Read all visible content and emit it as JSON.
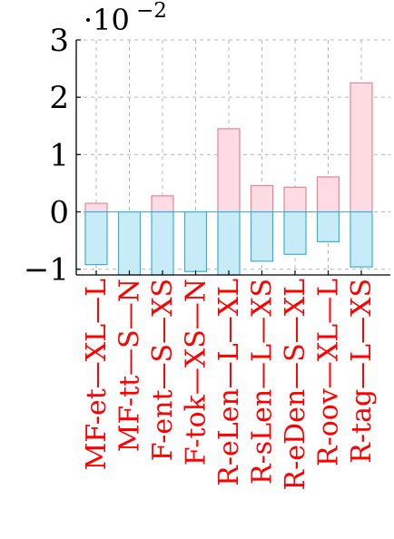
{
  "chart_data": {
    "type": "bar",
    "title": "",
    "xlabel": "",
    "ylabel": "",
    "scale_factor": "·10",
    "scale_exponent": "−2",
    "ylim": [
      -1.1,
      3.0
    ],
    "yticks": [
      -1,
      0,
      1,
      2,
      3
    ],
    "ytick_labels": [
      "−1",
      "0",
      "1",
      "2",
      "3"
    ],
    "grid": true,
    "categories": [
      "MF-et—XL—L",
      "MF-tt—S—N",
      "F-ent—S—XS",
      "F-tok—XS—N",
      "R-eLen—L—XL",
      "R-sLen—L—XS",
      "R-eDen—S—XL",
      "R-oov—XL—L",
      "R-tag—L—XS"
    ],
    "series": [
      {
        "values": [
          0.15,
          0.0,
          0.28,
          0.0,
          1.45,
          0.46,
          0.43,
          0.61,
          2.25
        ]
      },
      {
        "values": [
          -0.92,
          -1.1,
          -1.1,
          -1.04,
          -1.1,
          -0.86,
          -0.74,
          -0.52,
          -0.96
        ]
      }
    ],
    "colors": {
      "positive_fill": "#ffdbe3",
      "positive_stroke": "#e8849a",
      "negative_fill": "#c8ecf7",
      "negative_stroke": "#3ab0d9",
      "grid": "#b8b8b8",
      "category_text": "#ff0000"
    }
  }
}
